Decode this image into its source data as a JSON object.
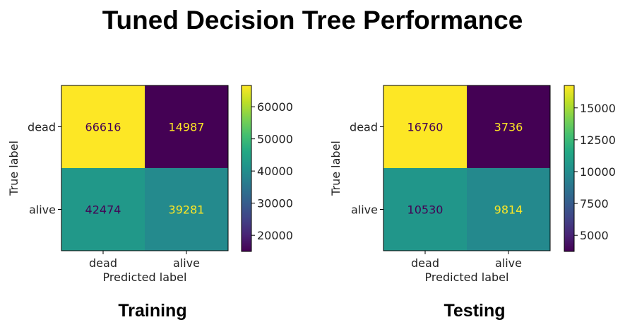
{
  "figure": {
    "title": "Tuned Decision Tree Performance"
  },
  "chart_data": [
    {
      "type": "heatmap",
      "panel_title": "Training",
      "x_categories": [
        "dead",
        "alive"
      ],
      "y_categories": [
        "dead",
        "alive"
      ],
      "values": [
        [
          66616,
          14987
        ],
        [
          42474,
          39281
        ]
      ],
      "xlabel": "Predicted label",
      "ylabel": "True label",
      "colorbar": {
        "min": 14987,
        "max": 66616,
        "ticks": [
          20000,
          30000,
          40000,
          50000,
          60000
        ]
      },
      "colormap": "viridis"
    },
    {
      "type": "heatmap",
      "panel_title": "Testing",
      "x_categories": [
        "dead",
        "alive"
      ],
      "y_categories": [
        "dead",
        "alive"
      ],
      "values": [
        [
          16760,
          3736
        ],
        [
          10530,
          9814
        ]
      ],
      "xlabel": "Predicted label",
      "ylabel": "True label",
      "colorbar": {
        "min": 3736,
        "max": 16760,
        "ticks": [
          5000,
          7500,
          10000,
          12500,
          15000
        ]
      },
      "colormap": "viridis"
    }
  ]
}
